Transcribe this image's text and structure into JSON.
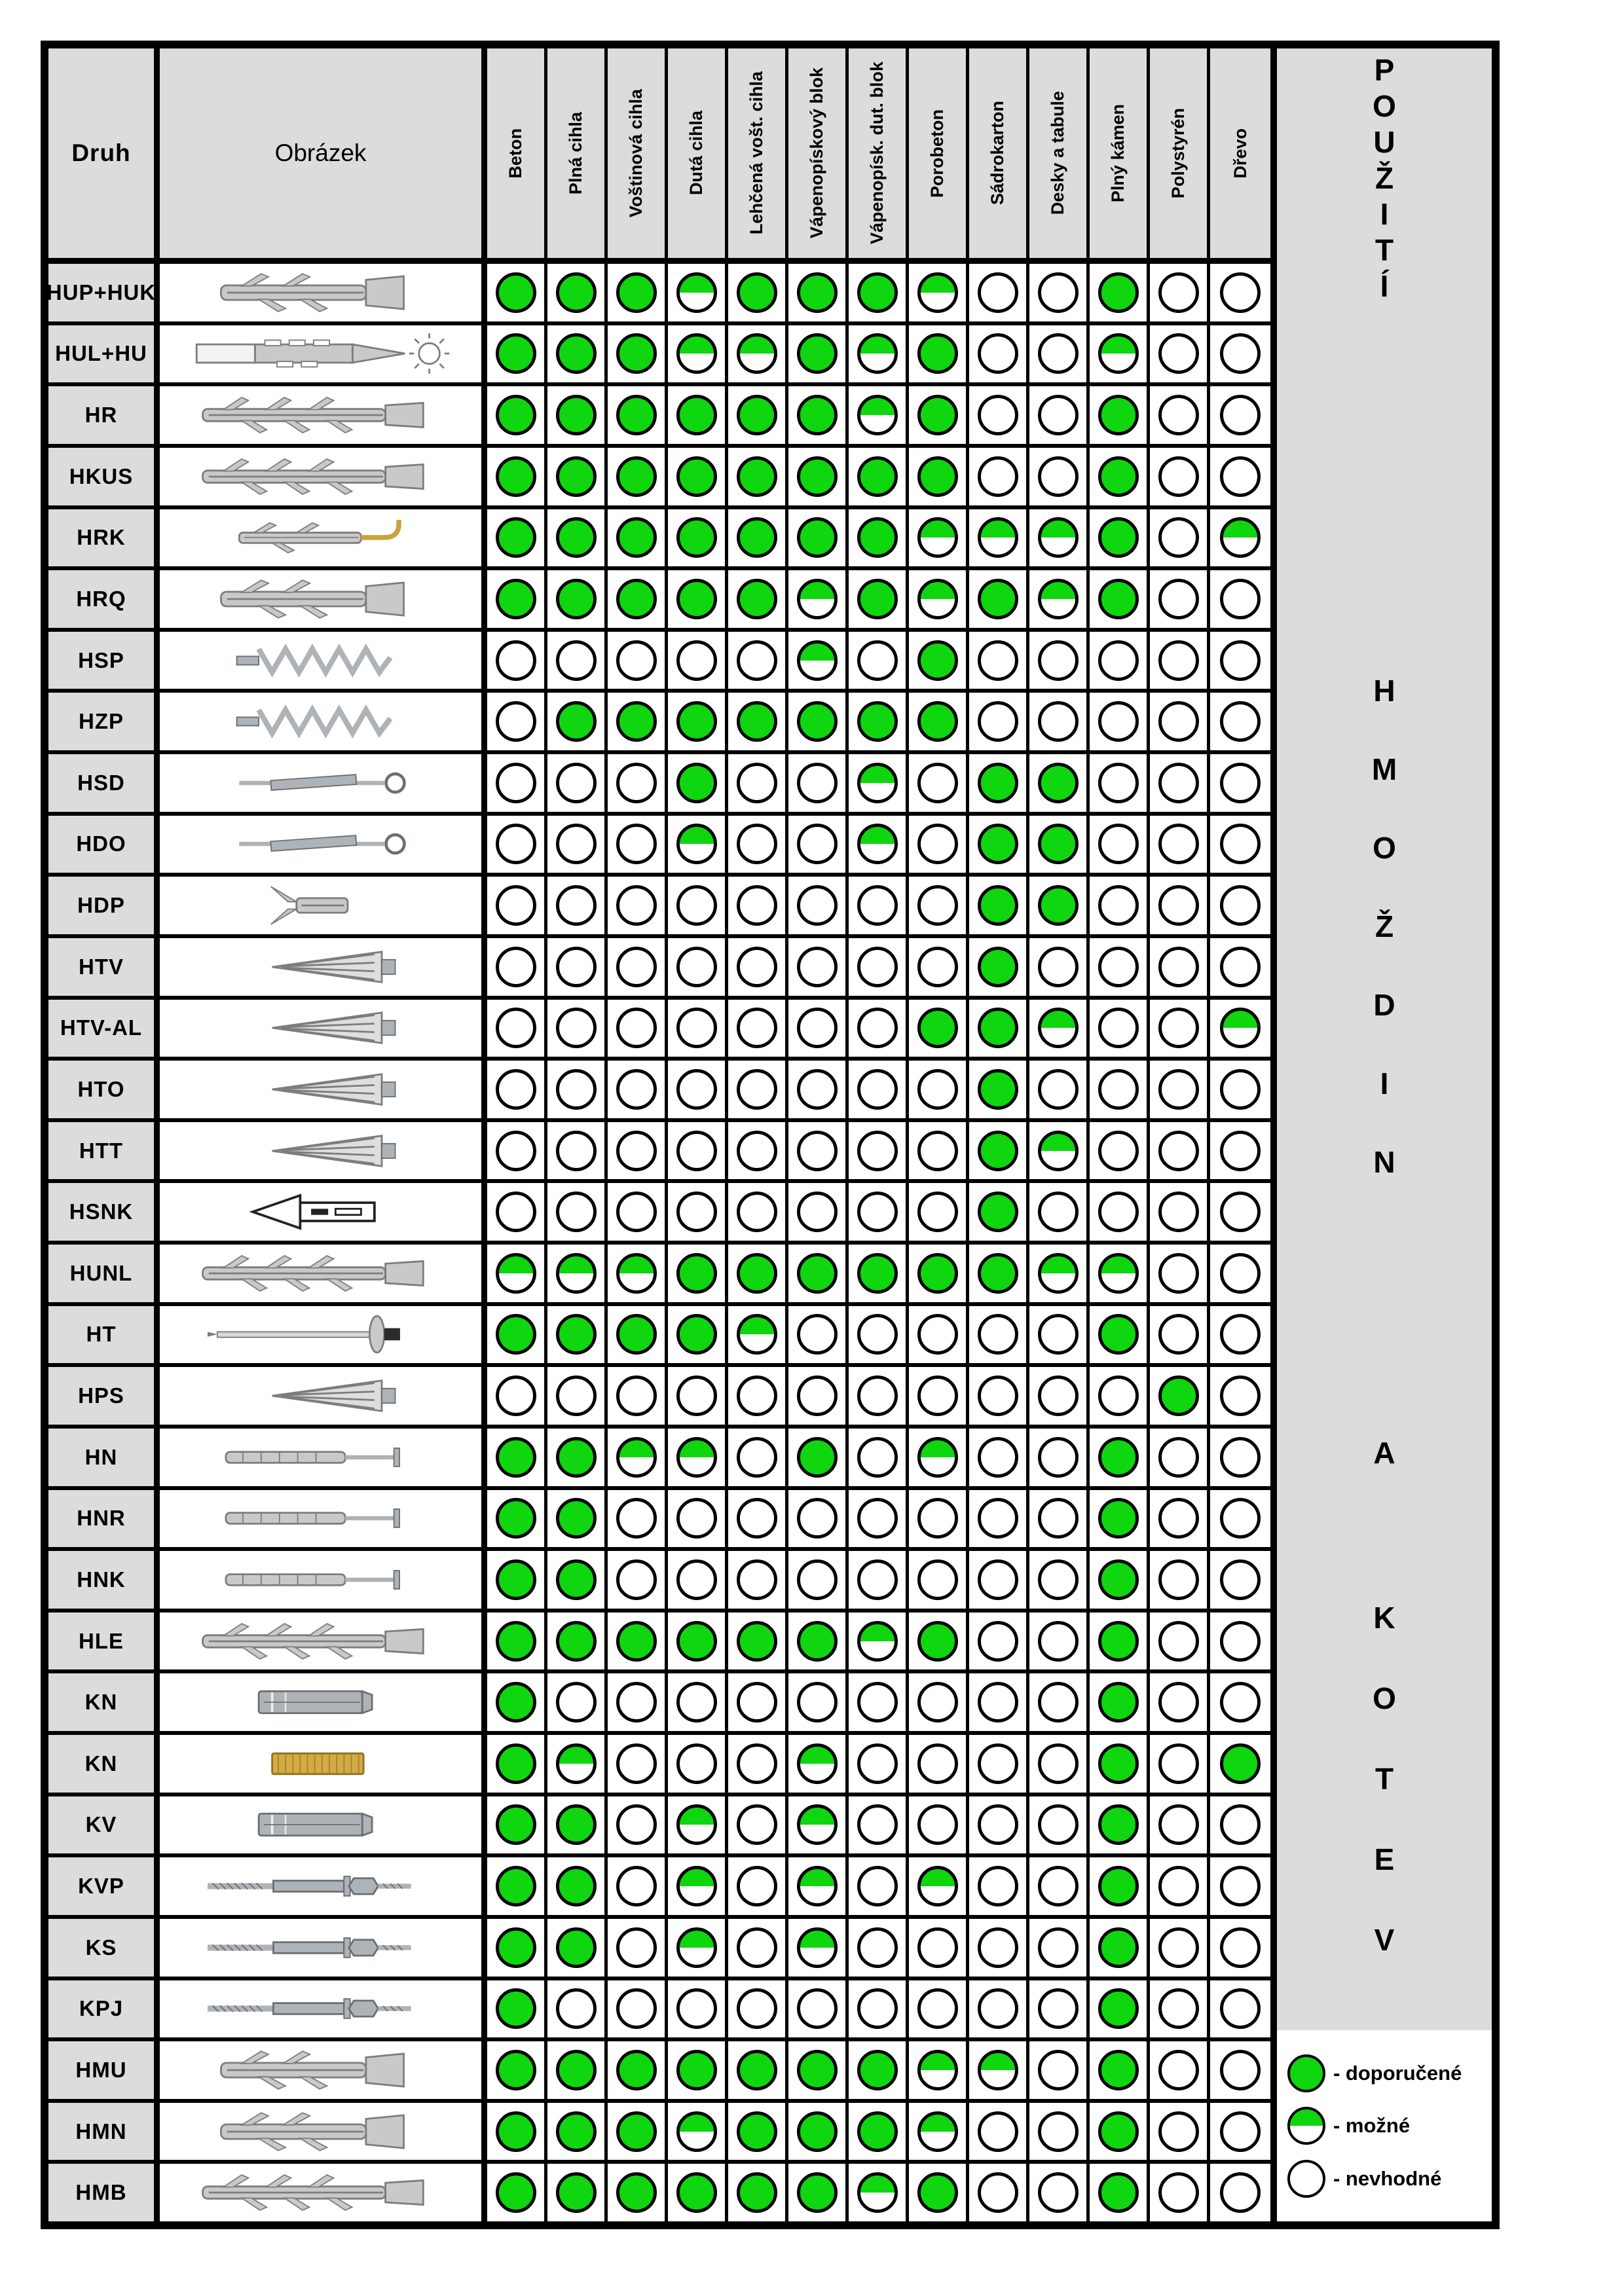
{
  "colors": {
    "green": "#0fd60f",
    "panel_gray": "#dcdcdc",
    "border": "#000000"
  },
  "header": {
    "druh": "Druh",
    "obrazek": "Obrázek",
    "materials": [
      "Beton",
      "Plná cihla",
      "Voštinová cihla",
      "Dutá cihla",
      "Lehčená vošt. cihla",
      "Vápenopískový blok",
      "Vápenopísk. dut. blok",
      "Porobeton",
      "Sádrokarton",
      "Desky a tabule",
      "Plný kámen",
      "Polystyrén",
      "Dřevo"
    ]
  },
  "side_title": {
    "words": [
      "POUŽITÍ",
      "HMOŽDIN",
      "A",
      "KOTEV"
    ]
  },
  "legend": [
    {
      "state": "full",
      "label": "- doporučené"
    },
    {
      "state": "half",
      "label": "- možné"
    },
    {
      "state": "none",
      "label": "- nevhodné"
    }
  ],
  "rows": [
    {
      "code": "HUP+HUK",
      "image": "dowel",
      "cells": [
        "full",
        "full",
        "full",
        "half",
        "full",
        "full",
        "full",
        "half",
        "none",
        "none",
        "full",
        "none",
        "none"
      ]
    },
    {
      "code": "HUL+HU",
      "image": "sleeve",
      "cells": [
        "full",
        "full",
        "full",
        "half",
        "half",
        "full",
        "half",
        "full",
        "none",
        "none",
        "half",
        "none",
        "none"
      ]
    },
    {
      "code": "HR",
      "image": "long-dowel",
      "cells": [
        "full",
        "full",
        "full",
        "full",
        "full",
        "full",
        "half",
        "full",
        "none",
        "none",
        "full",
        "none",
        "none"
      ]
    },
    {
      "code": "HKUS",
      "image": "long-dowel",
      "cells": [
        "full",
        "full",
        "full",
        "full",
        "full",
        "full",
        "full",
        "full",
        "none",
        "none",
        "full",
        "none",
        "none"
      ]
    },
    {
      "code": "HRK",
      "image": "hook-dowel",
      "cells": [
        "full",
        "full",
        "full",
        "full",
        "full",
        "full",
        "full",
        "half",
        "half",
        "half",
        "full",
        "none",
        "half"
      ]
    },
    {
      "code": "HRQ",
      "image": "dowel",
      "cells": [
        "full",
        "full",
        "full",
        "full",
        "full",
        "half",
        "full",
        "half",
        "full",
        "half",
        "full",
        "none",
        "none"
      ]
    },
    {
      "code": "HSP",
      "image": "spiral",
      "cells": [
        "none",
        "none",
        "none",
        "none",
        "none",
        "half",
        "none",
        "full",
        "none",
        "none",
        "none",
        "none",
        "none"
      ]
    },
    {
      "code": "HZP",
      "image": "spiral",
      "cells": [
        "none",
        "full",
        "full",
        "full",
        "full",
        "full",
        "full",
        "full",
        "none",
        "none",
        "none",
        "none",
        "none"
      ]
    },
    {
      "code": "HSD",
      "image": "toggle",
      "cells": [
        "none",
        "none",
        "none",
        "full",
        "none",
        "none",
        "half",
        "none",
        "full",
        "full",
        "none",
        "none",
        "none"
      ]
    },
    {
      "code": "HDO",
      "image": "toggle",
      "cells": [
        "none",
        "none",
        "none",
        "half",
        "none",
        "none",
        "half",
        "none",
        "full",
        "full",
        "none",
        "none",
        "none"
      ]
    },
    {
      "code": "HDP",
      "image": "plug",
      "cells": [
        "none",
        "none",
        "none",
        "none",
        "none",
        "none",
        "none",
        "none",
        "full",
        "full",
        "none",
        "none",
        "none"
      ]
    },
    {
      "code": "HTV",
      "image": "screw",
      "cells": [
        "none",
        "none",
        "none",
        "none",
        "none",
        "none",
        "none",
        "none",
        "full",
        "none",
        "none",
        "none",
        "none"
      ]
    },
    {
      "code": "HTV-AL",
      "image": "screw",
      "cells": [
        "none",
        "none",
        "none",
        "none",
        "none",
        "none",
        "none",
        "full",
        "full",
        "half",
        "none",
        "none",
        "half"
      ]
    },
    {
      "code": "HTO",
      "image": "screw",
      "cells": [
        "none",
        "none",
        "none",
        "none",
        "none",
        "none",
        "none",
        "none",
        "full",
        "none",
        "none",
        "none",
        "none"
      ]
    },
    {
      "code": "HTT",
      "image": "screw",
      "cells": [
        "none",
        "none",
        "none",
        "none",
        "none",
        "none",
        "none",
        "none",
        "full",
        "half",
        "none",
        "none",
        "none"
      ]
    },
    {
      "code": "HSNK",
      "image": "arrow",
      "cells": [
        "none",
        "none",
        "none",
        "none",
        "none",
        "none",
        "none",
        "none",
        "full",
        "none",
        "none",
        "none",
        "none"
      ]
    },
    {
      "code": "HUNL",
      "image": "long-dowel",
      "cells": [
        "half",
        "half",
        "half",
        "full",
        "full",
        "full",
        "full",
        "full",
        "full",
        "half",
        "half",
        "none",
        "none"
      ]
    },
    {
      "code": "HT",
      "image": "disc-nail",
      "cells": [
        "full",
        "full",
        "full",
        "full",
        "half",
        "none",
        "none",
        "none",
        "none",
        "none",
        "full",
        "none",
        "none"
      ]
    },
    {
      "code": "HPS",
      "image": "screw",
      "cells": [
        "none",
        "none",
        "none",
        "none",
        "none",
        "none",
        "none",
        "none",
        "none",
        "none",
        "none",
        "full",
        "none"
      ]
    },
    {
      "code": "HN",
      "image": "nail-dowel",
      "cells": [
        "full",
        "full",
        "half",
        "half",
        "none",
        "full",
        "none",
        "half",
        "none",
        "none",
        "full",
        "none",
        "none"
      ]
    },
    {
      "code": "HNR",
      "image": "nail-dowel",
      "cells": [
        "full",
        "full",
        "none",
        "none",
        "none",
        "none",
        "none",
        "none",
        "none",
        "none",
        "full",
        "none",
        "none"
      ]
    },
    {
      "code": "HNK",
      "image": "nail-dowel",
      "cells": [
        "full",
        "full",
        "none",
        "none",
        "none",
        "none",
        "none",
        "none",
        "none",
        "none",
        "full",
        "none",
        "none"
      ]
    },
    {
      "code": "HLE",
      "image": "long-dowel",
      "cells": [
        "full",
        "full",
        "full",
        "full",
        "full",
        "full",
        "half",
        "full",
        "none",
        "none",
        "full",
        "none",
        "none"
      ]
    },
    {
      "code": "KN",
      "image": "metal",
      "cells": [
        "full",
        "none",
        "none",
        "none",
        "none",
        "none",
        "none",
        "none",
        "none",
        "none",
        "full",
        "none",
        "none"
      ]
    },
    {
      "code": "KN",
      "image": "brass",
      "cells": [
        "full",
        "half",
        "none",
        "none",
        "none",
        "half",
        "none",
        "none",
        "none",
        "none",
        "full",
        "none",
        "full"
      ]
    },
    {
      "code": "KV",
      "image": "metal",
      "cells": [
        "full",
        "full",
        "none",
        "half",
        "none",
        "half",
        "none",
        "none",
        "none",
        "none",
        "full",
        "none",
        "none"
      ]
    },
    {
      "code": "KVP",
      "image": "bolt",
      "cells": [
        "full",
        "full",
        "none",
        "half",
        "none",
        "half",
        "none",
        "half",
        "none",
        "none",
        "full",
        "none",
        "none"
      ]
    },
    {
      "code": "KS",
      "image": "bolt",
      "cells": [
        "full",
        "full",
        "none",
        "half",
        "none",
        "half",
        "none",
        "none",
        "none",
        "none",
        "full",
        "none",
        "none"
      ]
    },
    {
      "code": "KPJ",
      "image": "bolt",
      "cells": [
        "full",
        "none",
        "none",
        "none",
        "none",
        "none",
        "none",
        "none",
        "none",
        "none",
        "full",
        "none",
        "none"
      ]
    },
    {
      "code": "HMU",
      "image": "dowel",
      "cells": [
        "full",
        "full",
        "full",
        "full",
        "full",
        "full",
        "full",
        "half",
        "half",
        "none",
        "full",
        "none",
        "none"
      ]
    },
    {
      "code": "HMN",
      "image": "dowel",
      "cells": [
        "full",
        "full",
        "full",
        "half",
        "full",
        "full",
        "full",
        "half",
        "none",
        "none",
        "full",
        "none",
        "none"
      ]
    },
    {
      "code": "HMB",
      "image": "long-dowel",
      "cells": [
        "full",
        "full",
        "full",
        "full",
        "full",
        "full",
        "half",
        "full",
        "none",
        "none",
        "full",
        "none",
        "none"
      ]
    }
  ]
}
